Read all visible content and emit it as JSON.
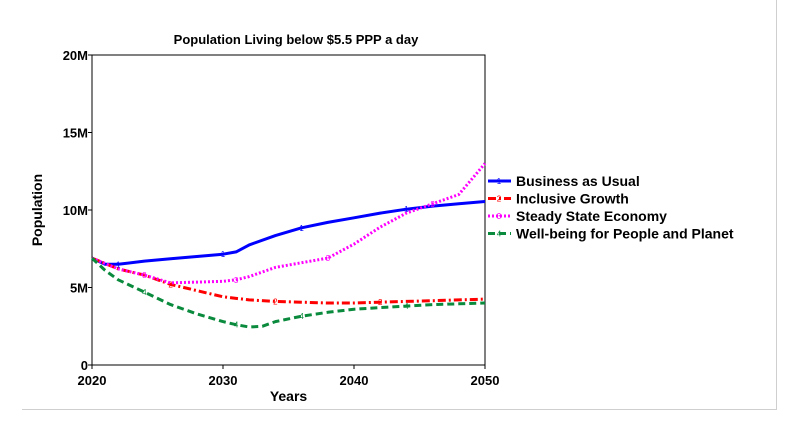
{
  "chart_data": {
    "type": "line",
    "title": "Population Living below $5.5 PPP a day",
    "xlabel": "Years",
    "ylabel": "Population",
    "xlim": [
      2020,
      2050
    ],
    "ylim": [
      0,
      20000000
    ],
    "x_ticks": [
      {
        "value": 2020,
        "label": "2020"
      },
      {
        "value": 2030,
        "label": "2030"
      },
      {
        "value": 2040,
        "label": "2040"
      },
      {
        "value": 2050,
        "label": "2050"
      }
    ],
    "y_ticks": [
      {
        "value": 0,
        "label": "0"
      },
      {
        "value": 5000000,
        "label": "5M"
      },
      {
        "value": 10000000,
        "label": "10M"
      },
      {
        "value": 15000000,
        "label": "15M"
      },
      {
        "value": 20000000,
        "label": "20M"
      }
    ],
    "grid": false,
    "legend_position": "right",
    "series": [
      {
        "name": "Business as Usual",
        "marker": "1",
        "color": "#0000ff",
        "dash": "solid",
        "x": [
          2020,
          2021,
          2022,
          2024,
          2026,
          2028,
          2030,
          2031,
          2032,
          2034,
          2036,
          2038,
          2040,
          2042,
          2044,
          2046,
          2048,
          2050
        ],
        "y": [
          6900000,
          6500000,
          6500000,
          6700000,
          6850000,
          7000000,
          7150000,
          7300000,
          7750000,
          8350000,
          8850000,
          9200000,
          9500000,
          9800000,
          10050000,
          10250000,
          10400000,
          10550000
        ]
      },
      {
        "name": "Inclusive Growth",
        "marker": "2",
        "color": "#ff0000",
        "dash": "dash-dot",
        "x": [
          2020,
          2022,
          2024,
          2026,
          2028,
          2030,
          2032,
          2034,
          2036,
          2038,
          2040,
          2042,
          2044,
          2046,
          2048,
          2050
        ],
        "y": [
          6900000,
          6200000,
          5800000,
          5200000,
          4800000,
          4400000,
          4200000,
          4100000,
          4050000,
          4000000,
          4000000,
          4050000,
          4100000,
          4150000,
          4200000,
          4250000
        ]
      },
      {
        "name": "Steady State Economy",
        "marker": "3",
        "color": "#ff00ff",
        "dash": "dotted",
        "x": [
          2020,
          2022,
          2024,
          2026,
          2028,
          2030,
          2031,
          2032,
          2034,
          2036,
          2038,
          2040,
          2042,
          2044,
          2046,
          2048,
          2050
        ],
        "y": [
          6900000,
          6200000,
          5800000,
          5300000,
          5350000,
          5400000,
          5500000,
          5700000,
          6300000,
          6600000,
          6900000,
          7800000,
          8900000,
          9800000,
          10400000,
          11000000,
          13000000
        ]
      },
      {
        "name": "Well-being for People and Planet",
        "marker": "4",
        "color": "#0a8a3c",
        "dash": "dashed",
        "x": [
          2020,
          2021,
          2022,
          2024,
          2026,
          2028,
          2030,
          2031,
          2032,
          2033,
          2034,
          2036,
          2038,
          2040,
          2042,
          2044,
          2046,
          2048,
          2050
        ],
        "y": [
          6900000,
          6100000,
          5500000,
          4700000,
          3900000,
          3300000,
          2800000,
          2600000,
          2450000,
          2500000,
          2800000,
          3150000,
          3400000,
          3600000,
          3700000,
          3800000,
          3900000,
          3950000,
          4000000
        ]
      }
    ]
  }
}
